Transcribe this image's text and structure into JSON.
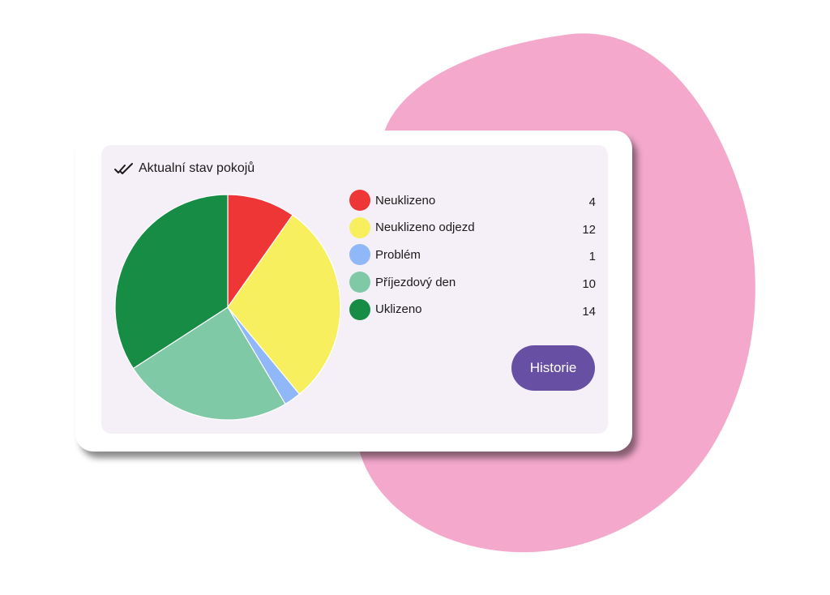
{
  "card": {
    "title": "Aktualní stav pokojů",
    "button_label": "Historie"
  },
  "colors": {
    "blob": "#f3a8cc",
    "button": "#6750a4",
    "panel": "#f5f0f7"
  },
  "chart_data": {
    "type": "pie",
    "title": "Aktualní stav pokojů",
    "legend_position": "right",
    "slices": [
      {
        "label": "Neuklizeno",
        "value": 4,
        "color": "#ee3636"
      },
      {
        "label": "Neuklizeno odjezd",
        "value": 12,
        "color": "#f7ef5d"
      },
      {
        "label": "Problém",
        "value": 1,
        "color": "#90b8f8"
      },
      {
        "label": "Příjezdový den",
        "value": 10,
        "color": "#80c9a6"
      },
      {
        "label": "Uklizeno",
        "value": 14,
        "color": "#168c44"
      }
    ]
  }
}
